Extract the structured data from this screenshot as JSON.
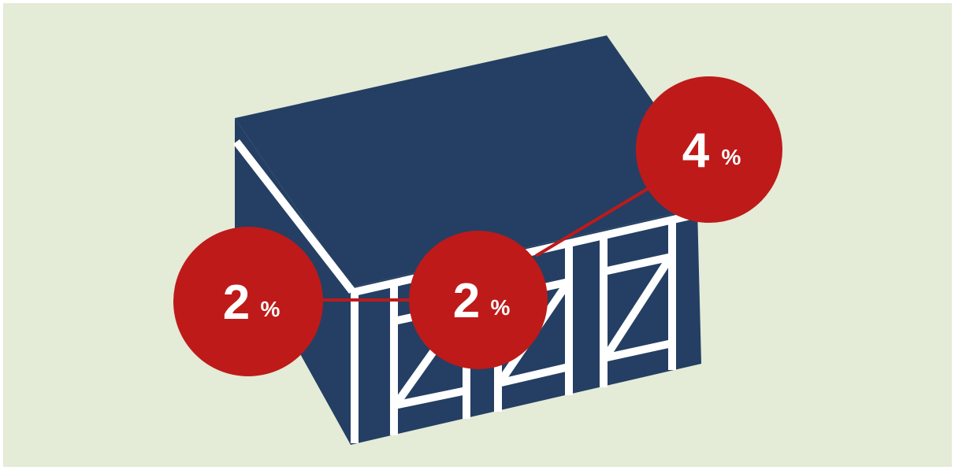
{
  "badges": [
    {
      "number": 2,
      "unit": "%"
    },
    {
      "number": 2,
      "unit": "%"
    },
    {
      "number": 4,
      "unit": "%"
    }
  ]
}
